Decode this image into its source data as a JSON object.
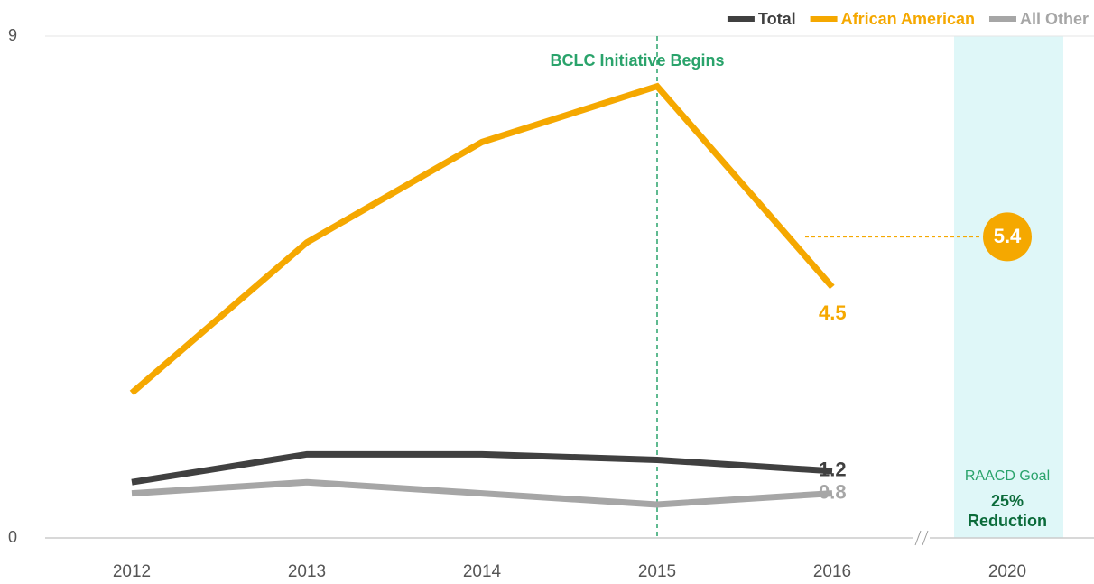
{
  "chart_data": {
    "type": "line",
    "categories": [
      "2012",
      "2013",
      "2014",
      "2015",
      "2016",
      "2020"
    ],
    "series": [
      {
        "name": "Total",
        "color": "#404040",
        "values": [
          1.0,
          1.5,
          1.5,
          1.4,
          1.2,
          null
        ]
      },
      {
        "name": "African American",
        "color": "#f5a800",
        "values": [
          2.6,
          5.3,
          7.1,
          8.1,
          4.5,
          null
        ]
      },
      {
        "name": "All Other",
        "color": "#a6a6a6",
        "values": [
          0.8,
          1.0,
          0.8,
          0.6,
          0.8,
          null
        ]
      }
    ],
    "ylim": [
      0,
      9
    ],
    "yticks": [
      0,
      9
    ],
    "marker": {
      "category": "2015",
      "label": "BCLC Initiative Begins",
      "color": "#2aa36b"
    },
    "goal": {
      "category": "2020",
      "value": 5.4,
      "color": "#f5a800",
      "band_color": "#dff7f8",
      "label": "RAACD Goal",
      "amount": "25%",
      "word": "Reduction"
    },
    "legend": "top-right"
  }
}
